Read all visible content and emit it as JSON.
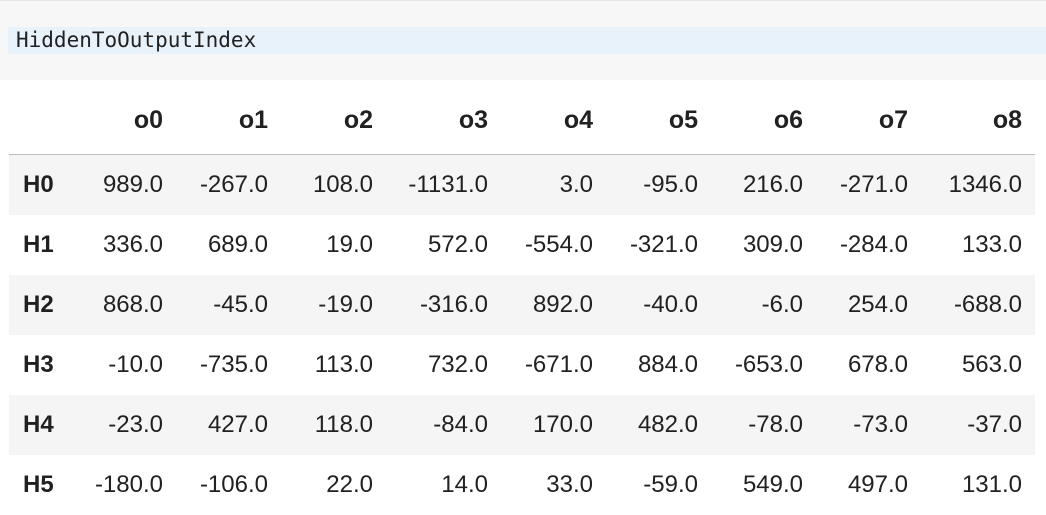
{
  "code_cell": {
    "source": "HiddenToOutputIndex"
  },
  "table": {
    "columns": [
      "o0",
      "o1",
      "o2",
      "o3",
      "o4",
      "o5",
      "o6",
      "o7",
      "o8"
    ],
    "rows": [
      {
        "index": "H0",
        "values": [
          "989.0",
          "-267.0",
          "108.0",
          "-1131.0",
          "3.0",
          "-95.0",
          "216.0",
          "-271.0",
          "1346.0"
        ]
      },
      {
        "index": "H1",
        "values": [
          "336.0",
          "689.0",
          "19.0",
          "572.0",
          "-554.0",
          "-321.0",
          "309.0",
          "-284.0",
          "133.0"
        ]
      },
      {
        "index": "H2",
        "values": [
          "868.0",
          "-45.0",
          "-19.0",
          "-316.0",
          "892.0",
          "-40.0",
          "-6.0",
          "254.0",
          "-688.0"
        ]
      },
      {
        "index": "H3",
        "values": [
          "-10.0",
          "-735.0",
          "113.0",
          "732.0",
          "-671.0",
          "884.0",
          "-653.0",
          "678.0",
          "563.0"
        ]
      },
      {
        "index": "H4",
        "values": [
          "-23.0",
          "427.0",
          "118.0",
          "-84.0",
          "170.0",
          "482.0",
          "-78.0",
          "-73.0",
          "-37.0"
        ]
      },
      {
        "index": "H5",
        "values": [
          "-180.0",
          "-106.0",
          "22.0",
          "14.0",
          "33.0",
          "-59.0",
          "549.0",
          "497.0",
          "131.0"
        ]
      }
    ]
  }
}
